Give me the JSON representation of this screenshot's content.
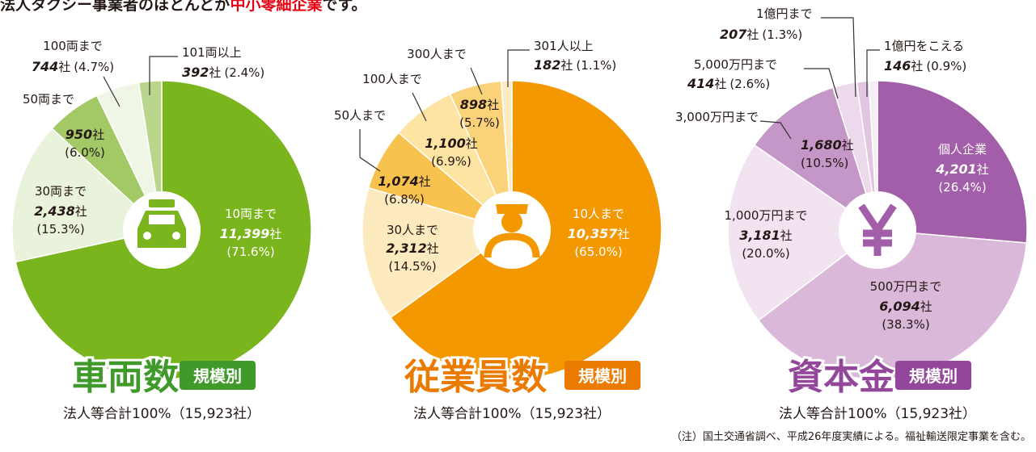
{
  "headline": [
    "法人タクシー事業者のほとんどが",
    "中小零細企業",
    "です。"
  ],
  "note": "（注）国土交通省調べ、平成26年度実績による。福祉輸送限定事業を含む。",
  "chart_data": [
    {
      "type": "pie",
      "title": "車両数",
      "subtitle": "規模別",
      "total": "法人等合計100%（15,923社）",
      "unit": "社",
      "categories": [
        "10両まで",
        "30両まで",
        "50両まで",
        "100両まで",
        "101両以上"
      ],
      "values": [
        11399,
        2438,
        950,
        744,
        392
      ],
      "value_labels": [
        "11,399",
        "2,438",
        "950",
        "744",
        "392"
      ],
      "shares": [
        71.6,
        15.3,
        6.0,
        4.7,
        2.4
      ],
      "share_labels": [
        "(71.6%)",
        "(15.3%)",
        "(6.0%)",
        "(4.7%)",
        "(2.4%)"
      ],
      "colors": [
        "#7ab51d",
        "#e9f2da",
        "#a3c866",
        "#f0f6e6",
        "#b9d68c"
      ],
      "color": "#3f9a2a"
    },
    {
      "type": "pie",
      "title": "従業員数",
      "subtitle": "規模別",
      "total": "法人等合計100%（15,923社）",
      "unit": "社",
      "categories": [
        "10人まで",
        "30人まで",
        "50人まで",
        "100人まで",
        "300人まで",
        "301人以上"
      ],
      "values": [
        10357,
        2312,
        1074,
        1100,
        898,
        182
      ],
      "value_labels": [
        "10,357",
        "2,312",
        "1,074",
        "1,100",
        "898",
        "182"
      ],
      "shares": [
        65.0,
        14.5,
        6.8,
        6.9,
        5.7,
        1.1
      ],
      "share_labels": [
        "(65.0%)",
        "(14.5%)",
        "(6.8%)",
        "(6.9%)",
        "(5.7%)",
        "(1.1%)"
      ],
      "colors": [
        "#f39800",
        "#fdebbf",
        "#f8c24e",
        "#fde4a3",
        "#fad279",
        "#fcecc4"
      ],
      "color": "#ea7a00"
    },
    {
      "type": "pie",
      "title": "資本金",
      "subtitle": "規模別",
      "total": "法人等合計100%（15,923社）",
      "unit": "社",
      "categories": [
        "個人企業",
        "500万円まで",
        "1,000万円まで",
        "3,000万円まで",
        "5,000万円まで",
        "1億円まで",
        "1億円をこえる"
      ],
      "values": [
        4201,
        6094,
        3181,
        1680,
        414,
        207,
        146
      ],
      "value_labels": [
        "4,201",
        "6,094",
        "3,181",
        "1,680",
        "414",
        "207",
        "146"
      ],
      "shares": [
        26.4,
        38.3,
        20.0,
        10.5,
        2.6,
        1.3,
        0.9
      ],
      "share_labels": [
        "(26.4%)",
        "(38.3%)",
        "(20.0%)",
        "(10.5%)",
        "(2.6%)",
        "(1.3%)",
        "(0.9%)"
      ],
      "colors": [
        "#a25ea8",
        "#dab8da",
        "#f2e3f1",
        "#c597c8",
        "#edd9ec",
        "#e0c6e0",
        "#f6ecf5"
      ],
      "color": "#93479a"
    }
  ]
}
